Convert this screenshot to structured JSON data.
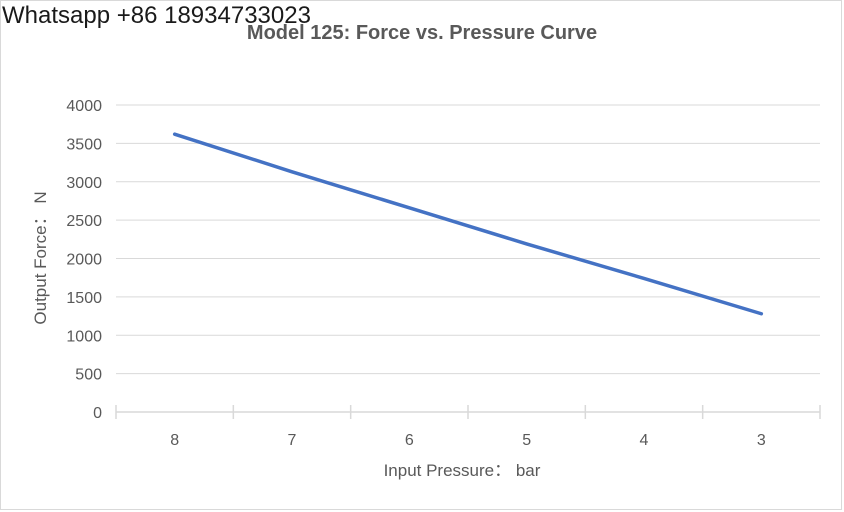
{
  "watermark": "Whatsapp +86 18934733023",
  "chart_data": {
    "type": "line",
    "title": "Model 125: Force vs. Pressure Curve",
    "xlabel": "Input Pressure： bar",
    "ylabel": "Output Force： N",
    "categories": [
      "8",
      "7",
      "6",
      "5",
      "4",
      "3"
    ],
    "series": [
      {
        "values": [
          3620,
          3130,
          2660,
          2190,
          1740,
          1280
        ]
      }
    ],
    "ylim": [
      0,
      4000
    ],
    "yticks": [
      0,
      500,
      1000,
      1500,
      2000,
      2500,
      3000,
      3500,
      4000
    ],
    "grid": "horizontal",
    "legend": "none",
    "colors": {
      "line": "#4472c4",
      "grid": "#d9d9d9",
      "text": "#595959"
    }
  }
}
